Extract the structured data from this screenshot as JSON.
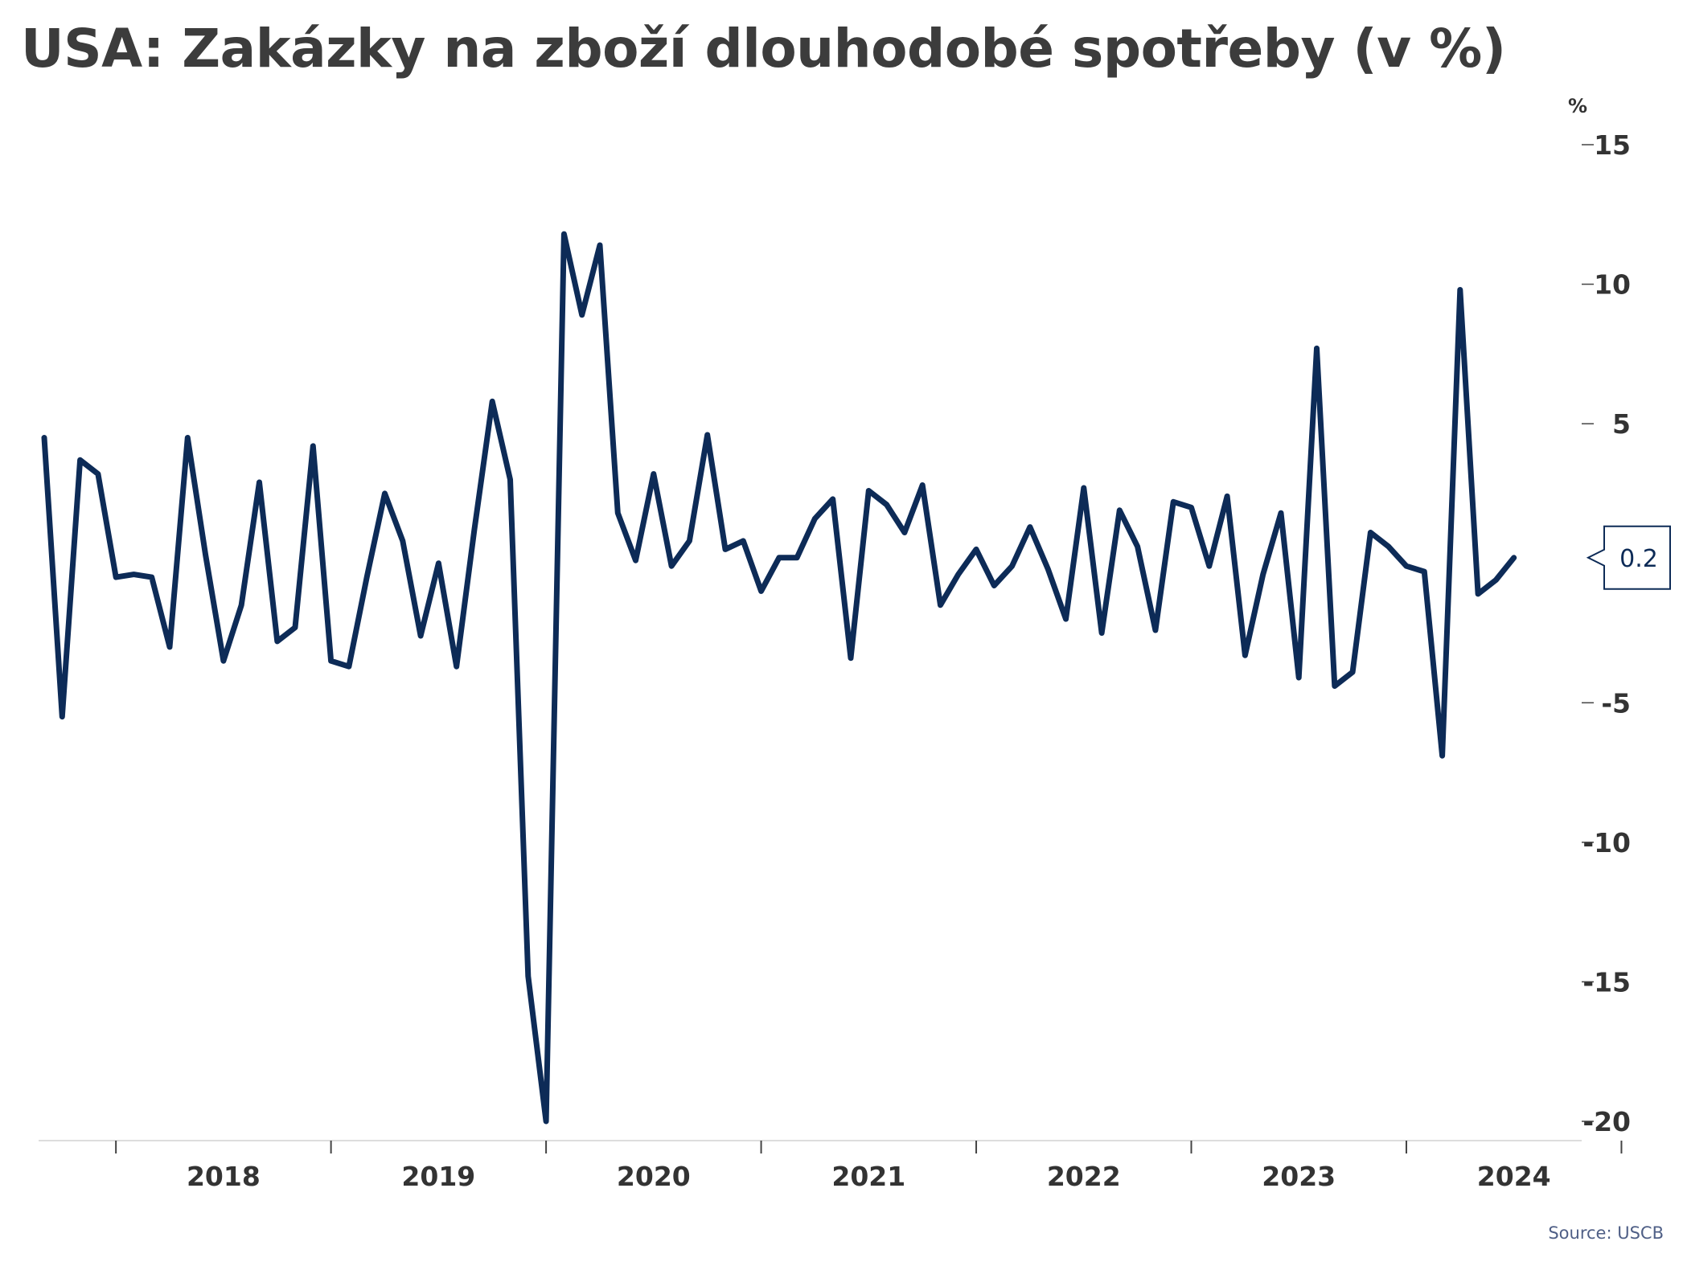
{
  "title": "USA: Zakázky na zboží dlouhodobé spotřeby (v %)",
  "source": "Source: USCB",
  "colors": {
    "line": "#0d2b57",
    "title": "#3c3c3c",
    "axis_text": "#333333",
    "tick": "#444444"
  },
  "chart_data": {
    "type": "line",
    "title": "USA: Zakázky na zboží dlouhodobé spotřeby (v %)",
    "xlabel": "",
    "ylabel": "%",
    "ylim": [
      -20,
      15
    ],
    "yticks": [
      15,
      10,
      5,
      -5,
      -10,
      -15,
      -20
    ],
    "xtick_labels": [
      "2018",
      "2019",
      "2020",
      "2021",
      "2022",
      "2023",
      "2024"
    ],
    "x_start": "2017-09",
    "x_end": "2024-08",
    "last_value_label": "0.2",
    "grid": false,
    "legend": "none",
    "series": [
      {
        "values": [
          4.5,
          -5.5,
          3.7,
          3.2,
          -0.5,
          -0.4,
          -0.5,
          -3.0,
          4.5,
          0.3,
          -3.5,
          -1.5,
          2.9,
          -2.8,
          -2.3,
          4.2,
          -3.5,
          -3.7,
          -0.5,
          2.5,
          0.8,
          -2.6,
          0.0,
          -3.7,
          1.2,
          5.8,
          3.0,
          -14.8,
          -20.0,
          11.8,
          8.9,
          11.4,
          1.8,
          0.1,
          3.2,
          -0.1,
          0.8,
          4.6,
          0.5,
          0.8,
          -1.0,
          0.2,
          0.2,
          1.6,
          2.3,
          -3.4,
          2.6,
          2.1,
          1.1,
          2.8,
          -1.5,
          -0.4,
          0.5,
          -0.8,
          -0.1,
          1.3,
          -0.2,
          -2.0,
          2.7,
          -2.5,
          1.9,
          0.6,
          -2.4,
          2.2,
          2.0,
          -0.1,
          2.4,
          -3.3,
          -0.4,
          1.8,
          -4.1,
          7.7,
          -4.4,
          -3.9,
          1.1,
          0.6,
          -0.1,
          -0.3,
          -6.9,
          9.8,
          -1.1,
          -0.6,
          0.2
        ]
      }
    ]
  }
}
